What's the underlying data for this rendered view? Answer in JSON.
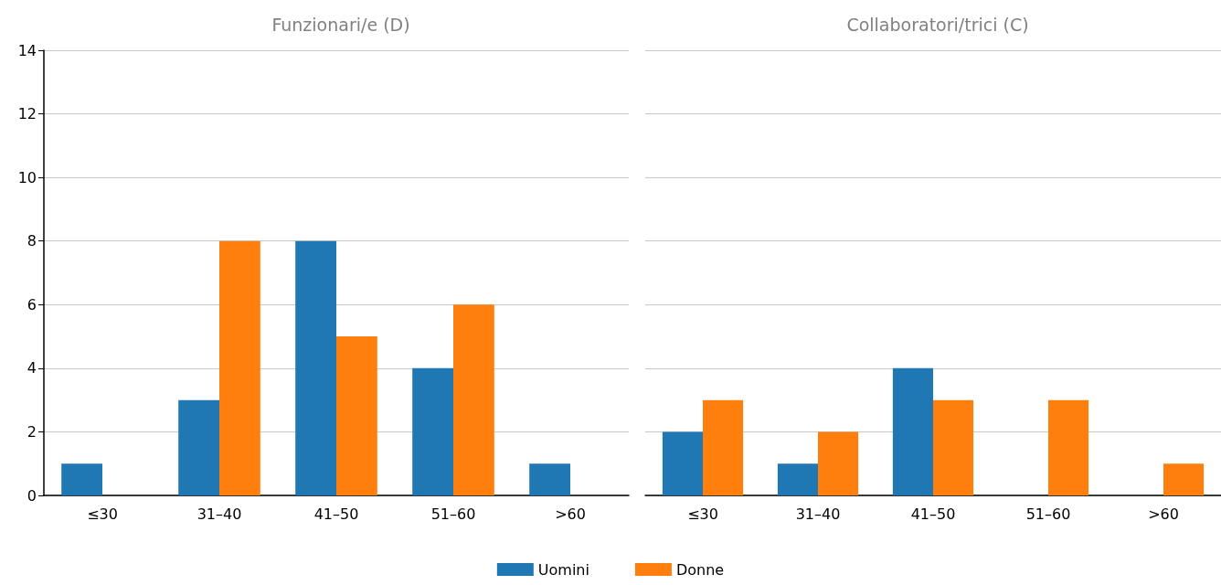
{
  "chart_data": [
    {
      "type": "bar",
      "title": "Funzionari/e (D)",
      "categories": [
        "≤30",
        "31–40",
        "41–50",
        "51–60",
        ">60"
      ],
      "series": [
        {
          "name": "Uomini",
          "color": "#1f77b4",
          "values": [
            1,
            3,
            8,
            4,
            1
          ]
        },
        {
          "name": "Donne",
          "color": "#ff7f0e",
          "values": [
            0,
            8,
            5,
            6,
            0
          ]
        }
      ],
      "ylim": [
        0,
        14
      ],
      "yticks": [
        0,
        2,
        4,
        6,
        8,
        10,
        12,
        14
      ],
      "grid": "y",
      "legend": "bottom"
    },
    {
      "type": "bar",
      "title": "Collaboratori/trici (C)",
      "categories": [
        "≤30",
        "31–40",
        "41–50",
        "51–60",
        ">60"
      ],
      "series": [
        {
          "color": "#1f77b4",
          "values": [
            2,
            1,
            4,
            0,
            0
          ]
        },
        {
          "color": "#ff7f0e",
          "values": [
            3,
            2,
            3,
            3,
            1
          ]
        }
      ],
      "ylim": [
        0,
        14
      ],
      "yticks": [
        0,
        2,
        4,
        6,
        8,
        10,
        12,
        14
      ],
      "grid": "y",
      "tick_labels": "x"
    }
  ]
}
